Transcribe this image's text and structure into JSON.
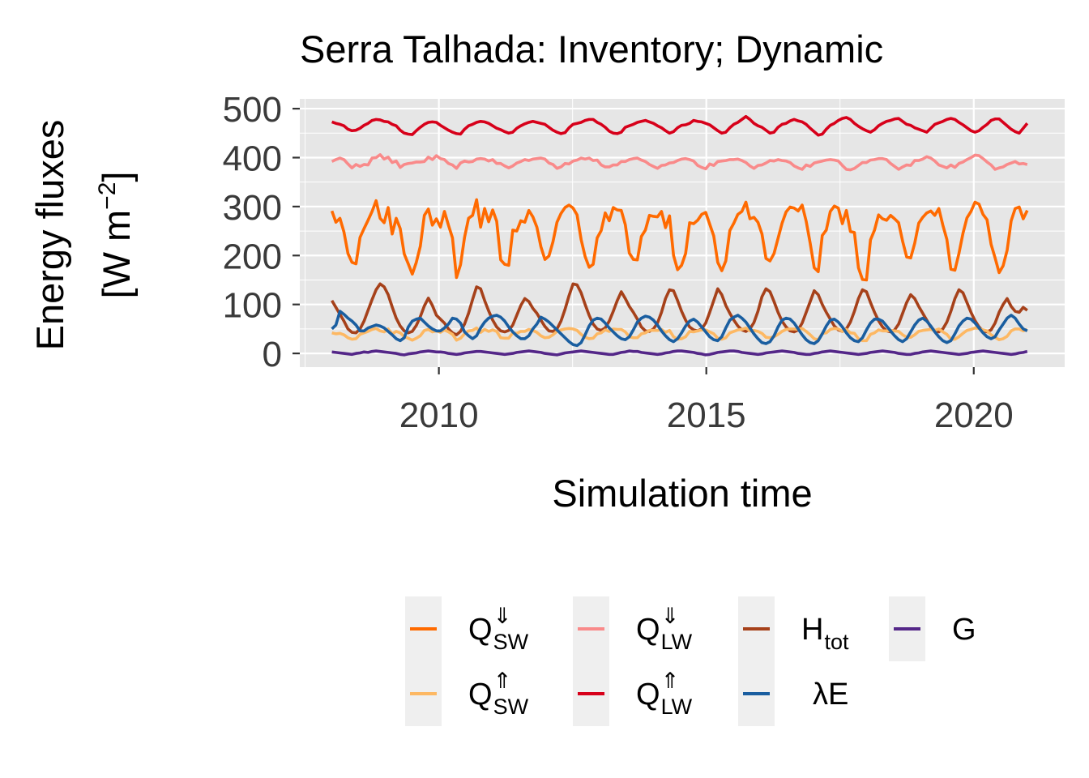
{
  "chart_data": {
    "type": "line",
    "title": "Serra Talhada: Inventory; Dynamic",
    "xlabel": "Simulation time",
    "ylabel_line1": "Energy fluxes",
    "ylabel_unit_base": "[W m",
    "ylabel_unit_exp": "−2",
    "ylabel_unit_close": "]",
    "xlim": [
      2007.4,
      2021.7
    ],
    "ylim": [
      -28,
      520
    ],
    "x_ticks": [
      2010,
      2015,
      2020
    ],
    "x_tick_labels": [
      "2010",
      "2015",
      "2020"
    ],
    "y_ticks": [
      0,
      100,
      200,
      300,
      400,
      500
    ],
    "y_tick_labels": [
      "0",
      "100",
      "200",
      "300",
      "400",
      "500"
    ],
    "grid": true,
    "legend_position": "bottom",
    "time_range": [
      2008.0,
      2021.0
    ],
    "series": [
      {
        "key": "QswDown",
        "color": "#ff6a00",
        "values": [
          291,
          268,
          276,
          248,
          204,
          186,
          183,
          237,
          255,
          272,
          290,
          312,
          276,
          267,
          298,
          244,
          276,
          255,
          203,
          183,
          162,
          186,
          219,
          282,
          295,
          262,
          275,
          258,
          290,
          262,
          236,
          155,
          181,
          237,
          276,
          282,
          314,
          258,
          296,
          269,
          293,
          270,
          191,
          182,
          180,
          252,
          250,
          271,
          268,
          292,
          279,
          258,
          218,
          192,
          199,
          228,
          268,
          286,
          298,
          303,
          297,
          283,
          233,
          198,
          176,
          182,
          236,
          251,
          287,
          271,
          298,
          293,
          292,
          263,
          205,
          192,
          191,
          239,
          252,
          282,
          280,
          279,
          290,
          257,
          281,
          200,
          171,
          180,
          204,
          267,
          265,
          272,
          284,
          288,
          264,
          240,
          186,
          169,
          189,
          251,
          266,
          284,
          290,
          309,
          275,
          278,
          268,
          244,
          194,
          189,
          204,
          235,
          266,
          289,
          299,
          297,
          291,
          303,
          270,
          225,
          175,
          167,
          241,
          252,
          290,
          301,
          297,
          265,
          292,
          249,
          247,
          175,
          151,
          150,
          232,
          252,
          283,
          275,
          272,
          282,
          275,
          267,
          229,
          197,
          195,
          225,
          266,
          278,
          287,
          291,
          282,
          296,
          262,
          233,
          172,
          170,
          204,
          245,
          277,
          290,
          309,
          305,
          284,
          273,
          223,
          195,
          165,
          179,
          211,
          271,
          296,
          299,
          275,
          292
        ]
      },
      {
        "key": "QswUp",
        "color": "#fdb863",
        "values": [
          42,
          40,
          41,
          38,
          32,
          29,
          30,
          39,
          42,
          45,
          49,
          51,
          46,
          44,
          50,
          40,
          45,
          42,
          34,
          31,
          27,
          31,
          36,
          47,
          49,
          44,
          46,
          43,
          48,
          44,
          39,
          27,
          31,
          40,
          46,
          47,
          52,
          43,
          49,
          45,
          48,
          45,
          32,
          31,
          31,
          42,
          41,
          45,
          45,
          49,
          47,
          43,
          36,
          32,
          33,
          38,
          45,
          48,
          50,
          51,
          50,
          47,
          39,
          33,
          30,
          31,
          40,
          42,
          48,
          45,
          50,
          49,
          49,
          44,
          34,
          32,
          32,
          40,
          42,
          47,
          47,
          47,
          49,
          43,
          47,
          34,
          29,
          30,
          34,
          45,
          44,
          46,
          48,
          48,
          44,
          40,
          31,
          29,
          32,
          42,
          45,
          48,
          49,
          52,
          46,
          47,
          45,
          41,
          33,
          32,
          34,
          39,
          45,
          49,
          50,
          50,
          49,
          51,
          45,
          38,
          30,
          28,
          41,
          42,
          49,
          51,
          50,
          45,
          49,
          42,
          41,
          30,
          26,
          26,
          39,
          42,
          48,
          46,
          46,
          47,
          46,
          45,
          38,
          33,
          33,
          38,
          45,
          47,
          48,
          49,
          47,
          50,
          44,
          39,
          29,
          29,
          34,
          41,
          47,
          49,
          52,
          51,
          48,
          46,
          38,
          33,
          28,
          30,
          35,
          46,
          50,
          50,
          46,
          49
        ]
      },
      {
        "key": "QlwDown",
        "color": "#f98a8a",
        "values": [
          392,
          396,
          399,
          396,
          387,
          379,
          386,
          382,
          386,
          385,
          399,
          400,
          406,
          397,
          401,
          390,
          393,
          380,
          386,
          388,
          389,
          391,
          391,
          392,
          401,
          396,
          404,
          398,
          396,
          388,
          385,
          378,
          389,
          393,
          391,
          392,
          397,
          398,
          397,
          393,
          396,
          388,
          388,
          383,
          379,
          383,
          389,
          392,
          396,
          394,
          397,
          398,
          399,
          397,
          389,
          386,
          378,
          381,
          388,
          387,
          393,
          395,
          399,
          397,
          399,
          394,
          395,
          385,
          381,
          381,
          385,
          385,
          392,
          392,
          396,
          398,
          399,
          395,
          392,
          386,
          382,
          378,
          384,
          385,
          389,
          390,
          394,
          397,
          398,
          396,
          393,
          384,
          380,
          377,
          387,
          384,
          392,
          393,
          394,
          396,
          396,
          397,
          394,
          390,
          383,
          378,
          384,
          385,
          389,
          394,
          393,
          396,
          394,
          393,
          390,
          383,
          379,
          376,
          385,
          382,
          389,
          391,
          393,
          395,
          396,
          395,
          393,
          384,
          376,
          375,
          378,
          384,
          390,
          390,
          395,
          396,
          398,
          398,
          396,
          388,
          382,
          376,
          381,
          385,
          384,
          394,
          394,
          397,
          402,
          399,
          393,
          385,
          382,
          379,
          385,
          380,
          388,
          391,
          396,
          400,
          405,
          404,
          398,
          391,
          385,
          376,
          379,
          381,
          386,
          389,
          392,
          387,
          388,
          386
        ]
      },
      {
        "key": "QlwUp",
        "color": "#d7001a",
        "values": [
          473,
          470,
          468,
          465,
          458,
          455,
          456,
          460,
          466,
          470,
          476,
          478,
          477,
          474,
          473,
          468,
          465,
          456,
          450,
          448,
          447,
          455,
          462,
          468,
          472,
          473,
          472,
          466,
          461,
          456,
          452,
          449,
          448,
          458,
          465,
          468,
          472,
          474,
          473,
          470,
          465,
          460,
          457,
          453,
          450,
          452,
          460,
          465,
          469,
          472,
          474,
          472,
          470,
          468,
          462,
          456,
          452,
          449,
          451,
          461,
          468,
          470,
          472,
          476,
          478,
          478,
          472,
          468,
          462,
          454,
          450,
          449,
          452,
          462,
          465,
          468,
          472,
          474,
          476,
          473,
          470,
          465,
          461,
          455,
          450,
          453,
          461,
          466,
          467,
          470,
          476,
          474,
          473,
          470,
          467,
          461,
          455,
          450,
          452,
          461,
          468,
          472,
          478,
          484,
          478,
          470,
          465,
          462,
          456,
          450,
          452,
          462,
          468,
          470,
          475,
          478,
          475,
          473,
          468,
          460,
          453,
          446,
          448,
          458,
          466,
          470,
          476,
          480,
          482,
          478,
          470,
          464,
          459,
          455,
          452,
          457,
          465,
          470,
          474,
          476,
          479,
          480,
          474,
          468,
          466,
          461,
          458,
          455,
          452,
          460,
          468,
          471,
          474,
          478,
          480,
          478,
          472,
          467,
          461,
          455,
          452,
          455,
          462,
          468,
          476,
          479,
          479,
          472,
          465,
          458,
          453,
          450,
          460,
          470
        ]
      },
      {
        "key": "Htot",
        "color": "#a6411a",
        "values": [
          108,
          94,
          80,
          66,
          50,
          43,
          42,
          50,
          66,
          88,
          110,
          130,
          142,
          136,
          120,
          95,
          72,
          56,
          46,
          42,
          45,
          57,
          75,
          97,
          113,
          98,
          78,
          70,
          62,
          50,
          42,
          38,
          45,
          60,
          82,
          110,
          136,
          132,
          108,
          87,
          68,
          54,
          46,
          44,
          47,
          58,
          78,
          98,
          112,
          106,
          92,
          82,
          68,
          55,
          46,
          45,
          50,
          66,
          90,
          118,
          142,
          140,
          124,
          100,
          78,
          60,
          50,
          47,
          52,
          66,
          86,
          108,
          126,
          112,
          96,
          84,
          70,
          54,
          46,
          45,
          50,
          62,
          84,
          112,
          130,
          128,
          108,
          86,
          68,
          54,
          48,
          46,
          50,
          62,
          84,
          108,
          132,
          120,
          98,
          82,
          68,
          56,
          48,
          45,
          50,
          63,
          86,
          116,
          132,
          126,
          106,
          84,
          66,
          54,
          46,
          44,
          48,
          62,
          84,
          106,
          128,
          120,
          100,
          84,
          70,
          56,
          48,
          45,
          50,
          64,
          86,
          112,
          130,
          126,
          104,
          84,
          67,
          54,
          46,
          44,
          48,
          60,
          82,
          104,
          120,
          112,
          96,
          82,
          68,
          54,
          46,
          44,
          50,
          64,
          86,
          112,
          130,
          124,
          104,
          84,
          67,
          54,
          46,
          44,
          48,
          62,
          84,
          100,
          112,
          96,
          86,
          84,
          94,
          88
        ]
      },
      {
        "key": "lambdaE",
        "color": "#1a5ea0",
        "values": [
          50,
          58,
          86,
          80,
          72,
          66,
          58,
          46,
          46,
          52,
          55,
          58,
          56,
          52,
          45,
          38,
          30,
          26,
          32,
          54,
          66,
          70,
          72,
          64,
          56,
          50,
          46,
          46,
          52,
          60,
          72,
          70,
          62,
          44,
          36,
          30,
          36,
          52,
          64,
          72,
          76,
          78,
          74,
          66,
          54,
          44,
          36,
          30,
          30,
          36,
          50,
          60,
          74,
          70,
          64,
          56,
          48,
          40,
          32,
          24,
          18,
          16,
          22,
          38,
          56,
          68,
          72,
          70,
          62,
          52,
          44,
          36,
          30,
          28,
          34,
          48,
          64,
          72,
          76,
          74,
          68,
          58,
          46,
          36,
          28,
          24,
          30,
          42,
          56,
          66,
          70,
          64,
          54,
          44,
          34,
          28,
          26,
          34,
          52,
          68,
          74,
          78,
          72,
          64,
          52,
          40,
          30,
          22,
          20,
          24,
          36,
          54,
          68,
          72,
          70,
          62,
          50,
          38,
          28,
          22,
          20,
          26,
          40,
          56,
          68,
          70,
          64,
          54,
          42,
          32,
          26,
          24,
          32,
          48,
          62,
          70,
          70,
          66,
          56,
          46,
          36,
          28,
          24,
          30,
          44,
          58,
          68,
          72,
          66,
          56,
          44,
          34,
          26,
          22,
          26,
          40,
          56,
          66,
          72,
          70,
          62,
          52,
          42,
          34,
          30,
          34,
          48,
          60,
          72,
          78,
          72,
          60,
          50,
          46
        ]
      },
      {
        "key": "G",
        "color": "#542788",
        "values": [
          3,
          2,
          1,
          0,
          -1,
          -2,
          0,
          1,
          3,
          2,
          4,
          5,
          4,
          3,
          2,
          1,
          0,
          -2,
          -3,
          -1,
          0,
          1,
          3,
          4,
          5,
          4,
          3,
          3,
          2,
          0,
          -1,
          -2,
          -1,
          1,
          2,
          3,
          4,
          4,
          3,
          2,
          1,
          0,
          -1,
          -2,
          -1,
          0,
          2,
          3,
          4,
          5,
          4,
          3,
          2,
          0,
          -1,
          -2,
          -3,
          -1,
          1,
          2,
          3,
          4,
          5,
          4,
          3,
          2,
          1,
          0,
          -1,
          -2,
          -2,
          0,
          2,
          3,
          5,
          4,
          4,
          2,
          1,
          0,
          -1,
          -2,
          -1,
          1,
          2,
          4,
          5,
          5,
          4,
          3,
          2,
          0,
          -1,
          -3,
          -2,
          0,
          2,
          3,
          4,
          5,
          5,
          4,
          2,
          1,
          0,
          -1,
          -2,
          -1,
          1,
          2,
          3,
          4,
          5,
          4,
          3,
          2,
          0,
          -1,
          -2,
          -2,
          0,
          1,
          3,
          4,
          5,
          4,
          3,
          2,
          1,
          0,
          -1,
          -2,
          -1,
          0,
          2,
          3,
          4,
          5,
          4,
          3,
          2,
          0,
          -1,
          -2,
          -2,
          0,
          1,
          3,
          4,
          5,
          4,
          3,
          2,
          1,
          0,
          -1,
          -2,
          -1,
          0,
          2,
          3,
          4,
          5,
          4,
          3,
          2,
          1,
          0,
          -1,
          -2,
          -1,
          1,
          2,
          4
        ]
      }
    ],
    "legend": [
      {
        "key": "QswDown",
        "color": "#ff6a00",
        "base": "Q",
        "sup": "⇓",
        "sub": "SW"
      },
      {
        "key": "QswUp",
        "color": "#fdb863",
        "base": "Q",
        "sup": "⇑",
        "sub": "SW"
      },
      {
        "key": "QlwDown",
        "color": "#f98a8a",
        "base": "Q",
        "sup": "⇓",
        "sub": "LW"
      },
      {
        "key": "QlwUp",
        "color": "#d7001a",
        "base": "Q",
        "sup": "⇑",
        "sub": "LW"
      },
      {
        "key": "Htot",
        "color": "#a6411a",
        "base": "H",
        "sup": "",
        "sub": "tot"
      },
      {
        "key": "lambdaE",
        "color": "#1a5ea0",
        "base": "λE",
        "sup": "",
        "sub": ""
      },
      {
        "key": "G",
        "color": "#542788",
        "base": "G",
        "sup": "",
        "sub": ""
      }
    ],
    "panel_color": "#e6e6e6",
    "grid_color": "#ffffff"
  }
}
